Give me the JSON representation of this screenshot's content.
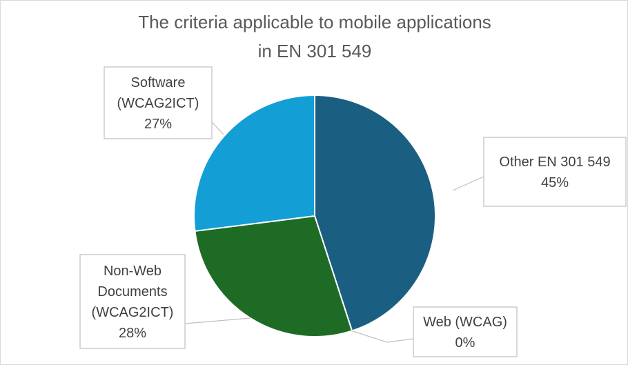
{
  "chart_data": {
    "type": "pie",
    "title": "The criteria applicable to mobile applications in EN 301 549",
    "title_lines": [
      "The criteria applicable to mobile applications",
      "in EN 301 549"
    ],
    "start_angle_deg": 0,
    "direction": "clockwise",
    "legend": "none",
    "slices": [
      {
        "label": "Other EN 301 549",
        "label_lines": [
          "Other EN 301 549"
        ],
        "value": 45,
        "value_label": "45%",
        "color": "#1a5e82"
      },
      {
        "label": "Web (WCAG)",
        "label_lines": [
          "Web (WCAG)"
        ],
        "value": 0,
        "value_label": "0%",
        "color": "#6fa3c7"
      },
      {
        "label": "Non-Web Documents (WCAG2ICT)",
        "label_lines": [
          "Non-Web",
          "Documents",
          "(WCAG2ICT)"
        ],
        "value": 28,
        "value_label": "28%",
        "color": "#1e6b26"
      },
      {
        "label": "Software (WCAG2ICT)",
        "label_lines": [
          "Software",
          "(WCAG2ICT)"
        ],
        "value": 27,
        "value_label": "27%",
        "color": "#139ed6"
      }
    ]
  }
}
